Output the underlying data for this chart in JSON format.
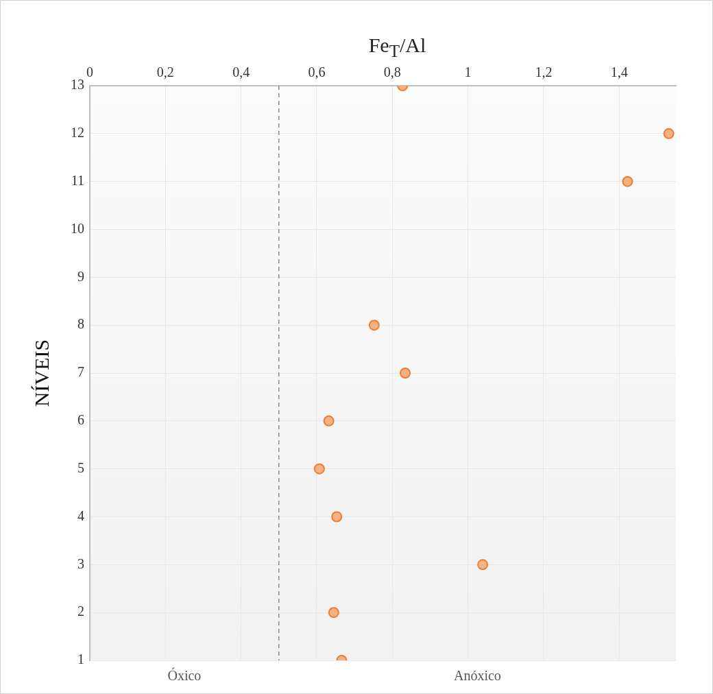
{
  "chart_data": {
    "type": "scatter",
    "xlabel": "Fe$_{T}$/Al",
    "ylabel": "NÍVEIS",
    "x": [
      0.666,
      0.645,
      1.039,
      0.653,
      0.607,
      0.632,
      0.834,
      0.752,
      1.422,
      1.531,
      0.827
    ],
    "values": [
      1,
      2,
      3,
      4,
      5,
      6,
      7,
      8,
      11,
      12,
      13
    ],
    "color": "#f4b183",
    "marker": "circle",
    "grid": true,
    "legend": false,
    "xlim": [
      0,
      1.55
    ],
    "xticks": [
      {
        "value": 0,
        "label": "0"
      },
      {
        "value": 0.2,
        "label": "0,2"
      },
      {
        "value": 0.4,
        "label": "0,4"
      },
      {
        "value": 0.6,
        "label": "0,6"
      },
      {
        "value": 0.8,
        "label": "0,8"
      },
      {
        "value": 1,
        "label": "1"
      },
      {
        "value": 1.2,
        "label": "1,2"
      },
      {
        "value": 1.4,
        "label": "1,4"
      }
    ],
    "ylim": [
      1,
      13
    ],
    "yticks": [
      1,
      2,
      3,
      4,
      5,
      6,
      7,
      8,
      9,
      10,
      11,
      12,
      13
    ],
    "ref_lines": [
      {
        "axis": "x",
        "value": 0.5,
        "color": "#8c8c8c",
        "line_style": "dashed"
      }
    ],
    "annotations": [
      "Óxico",
      "Anóxico"
    ]
  }
}
